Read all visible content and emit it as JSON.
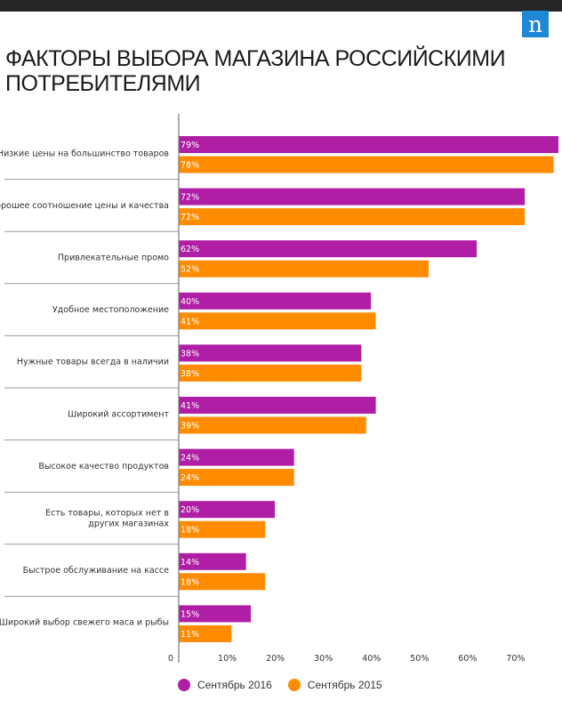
{
  "header": {
    "logo_text": "n",
    "brand_color": "#1e88d6"
  },
  "chart_data": {
    "type": "bar",
    "orientation": "horizontal",
    "title": "ФАКТОРЫ ВЫБОРА МАГАЗИНА РОССИЙСКИМИ ПОТРЕБИТЕЛЯМИ",
    "categories": [
      "Низкие цены на большинство товаров",
      "Хорошее соотношение цены и качества",
      "Привлекательные промо",
      "Удобное местоположение",
      "Нужные товары всегда в наличии",
      "Широкий ассортимент",
      "Высокое качество продуктов",
      "Есть товары, которых нет в других магазинах",
      "Быстрое обслуживание на кассе",
      "Широкий выбор свежего маса и рыбы"
    ],
    "series": [
      {
        "name": "Сентябрь 2016",
        "color": "#b01ea5",
        "values": [
          79,
          72,
          62,
          40,
          38,
          41,
          24,
          20,
          14,
          15
        ]
      },
      {
        "name": "Сентябрь 2015",
        "color": "#ff8c00",
        "values": [
          78,
          72,
          52,
          41,
          38,
          39,
          24,
          18,
          18,
          11
        ]
      }
    ],
    "x_ticks": [
      "0",
      "10%",
      "20%",
      "30%",
      "40%",
      "50%",
      "60%",
      "70%"
    ],
    "xlim": [
      0,
      79
    ],
    "grid": false,
    "legend_position": "bottom"
  }
}
